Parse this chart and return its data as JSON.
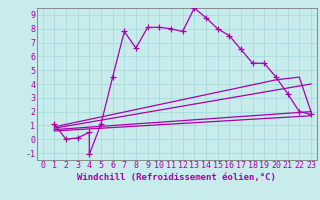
{
  "xlabel": "Windchill (Refroidissement éolien,°C)",
  "background_color": "#c8ecec",
  "line_color": "#aa00aa",
  "xlim": [
    -0.5,
    23.5
  ],
  "ylim": [
    -1.5,
    9.5
  ],
  "xticks": [
    0,
    1,
    2,
    3,
    4,
    5,
    6,
    7,
    8,
    9,
    10,
    11,
    12,
    13,
    14,
    15,
    16,
    17,
    18,
    19,
    20,
    21,
    22,
    23
  ],
  "yticks": [
    -1,
    0,
    1,
    2,
    3,
    4,
    5,
    6,
    7,
    8,
    9
  ],
  "line1_x": [
    1,
    2,
    3,
    4,
    4,
    5,
    6,
    7,
    8,
    9,
    10,
    11,
    12,
    13,
    14,
    15,
    16,
    17,
    18,
    19,
    20,
    21,
    22,
    23
  ],
  "line1_y": [
    1.1,
    0.0,
    0.1,
    0.5,
    -1.1,
    1.1,
    4.5,
    7.8,
    6.6,
    8.1,
    8.1,
    8.0,
    7.8,
    9.5,
    8.8,
    8.0,
    7.5,
    6.5,
    5.5,
    5.5,
    4.5,
    3.3,
    2.0,
    1.8
  ],
  "line2_x": [
    1,
    20,
    22,
    23
  ],
  "line2_y": [
    0.9,
    4.3,
    4.5,
    2.0
  ],
  "line3_x": [
    1,
    23
  ],
  "line3_y": [
    0.8,
    4.0
  ],
  "line4_x": [
    1,
    23
  ],
  "line4_y": [
    0.7,
    2.0
  ],
  "line5_x": [
    1,
    23
  ],
  "line5_y": [
    0.6,
    1.7
  ],
  "xlabel_fontsize": 6.5,
  "tick_fontsize": 6.0,
  "grid_color": "#a0d8d8"
}
